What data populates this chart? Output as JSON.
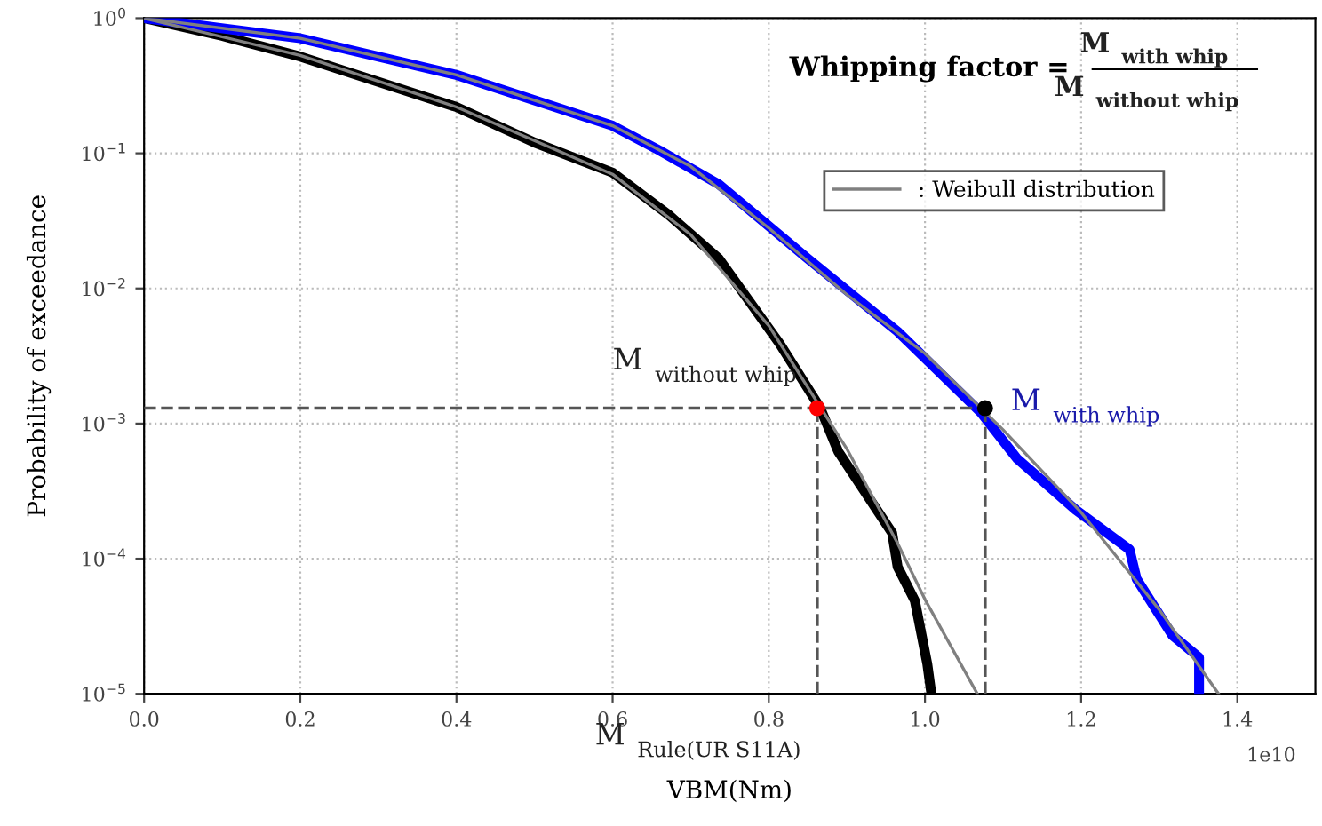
{
  "chart_data": {
    "type": "line",
    "xlabel": "VBM(Nm)",
    "ylabel": "Probability of exceedance",
    "log": "y",
    "xlim": [
      0,
      1.5
    ],
    "xticks": [
      {
        "value": 0,
        "label": "0.0"
      },
      {
        "value": 0.2,
        "label": "0.2"
      },
      {
        "value": 0.4,
        "label": "0.4"
      },
      {
        "value": 0.6,
        "label": "0.6"
      },
      {
        "value": 0.8,
        "label": "0.8"
      },
      {
        "value": 1.0,
        "label": "1.0"
      },
      {
        "value": 1.2,
        "label": "1.2"
      },
      {
        "value": 1.4,
        "label": "1.4"
      }
    ],
    "ylim": [
      1e-05,
      1
    ],
    "yticks": [
      {
        "value": 1e-05,
        "label": "10$^{−5}$"
      },
      {
        "value": 0.0001,
        "label": "10$^{−4}$"
      },
      {
        "value": 0.001,
        "label": "10$^{−3}$"
      },
      {
        "value": 0.01,
        "label": "10$^{−2}$"
      },
      {
        "value": 0.1,
        "label": "10$^{−1}$"
      },
      {
        "value": 1,
        "label": "10$^{0}$"
      }
    ],
    "grid": true,
    "legend": "top right",
    "line_style": "solid",
    "marker": "none",
    "series": [
      {
        "color": "#808080",
        "x": [
          0,
          0.2,
          0.4,
          0.6,
          0.7,
          0.8,
          0.86,
          0.9,
          0.965,
          1.0,
          1.067
        ],
        "values": [
          1,
          0.53,
          0.22,
          0.07,
          0.025,
          0.0053,
          0.0015,
          0.00065,
          0.00013,
          5e-05,
          1e-05
        ]
      },
      {
        "name": ": Weibull distribution",
        "color": "#808080",
        "x": [
          0,
          0.2,
          0.4,
          0.6,
          0.7,
          0.8,
          0.9,
          1.0,
          1.1,
          1.2,
          1.3,
          1.376
        ],
        "values": [
          1,
          0.71,
          0.38,
          0.16,
          0.08,
          0.028,
          0.009,
          0.0033,
          0.0009,
          0.00022,
          4.2e-05,
          1e-05
        ]
      },
      {
        "color": "#000000",
        "x": [
          0,
          0.1,
          0.2,
          0.4,
          0.5,
          0.6,
          0.672,
          0.736,
          0.814,
          0.866,
          0.889,
          0.958,
          0.965,
          0.987,
          1.003,
          1.008
        ],
        "values": [
          1,
          0.74,
          0.52,
          0.22,
          0.12,
          0.072,
          0.035,
          0.0166,
          0.0039,
          0.0013,
          0.00062,
          0.000155,
          8.7e-05,
          4.9e-05,
          1.66e-05,
          1.02e-05
        ]
      },
      {
        "color": "#0000ff",
        "x": [
          0,
          0.2,
          0.4,
          0.6,
          0.66,
          0.736,
          0.85,
          0.965,
          1.072,
          1.118,
          1.193,
          1.262,
          1.271,
          1.317,
          1.351,
          1.351
        ],
        "values": [
          1,
          0.71,
          0.38,
          0.16,
          0.105,
          0.059,
          0.0166,
          0.0048,
          0.0012,
          0.00055,
          0.00023,
          0.000117,
          7.1e-05,
          2.7e-05,
          1.86e-05,
          1.02e-05
        ]
      },
      {
        "color": "#ff0000",
        "type": "scatter",
        "marker": "circle",
        "x": [
          0.862
        ],
        "values": [
          0.0013
        ]
      },
      {
        "color": "#000000",
        "type": "scatter",
        "marker": "circle",
        "x": [
          1.077
        ],
        "values": [
          0.0013
        ]
      }
    ],
    "ref_lines": [
      {
        "axis": "y",
        "value": 0.0013,
        "color": "#555555",
        "line_style": "dashed"
      },
      {
        "axis": "x",
        "value": 0.862,
        "color": "#555555",
        "line_style": "dashed"
      },
      {
        "axis": "x",
        "value": 1.077,
        "color": "#555555",
        "line_style": "dashed"
      }
    ],
    "annotations": [
      "M$_{without whip}$",
      "M$_{with whip}$",
      "M$_{Rule(UR S11A)}$",
      "1e10",
      "Whipping factor =",
      "M$_{with whip}$",
      "M$_{without whip}$"
    ]
  }
}
